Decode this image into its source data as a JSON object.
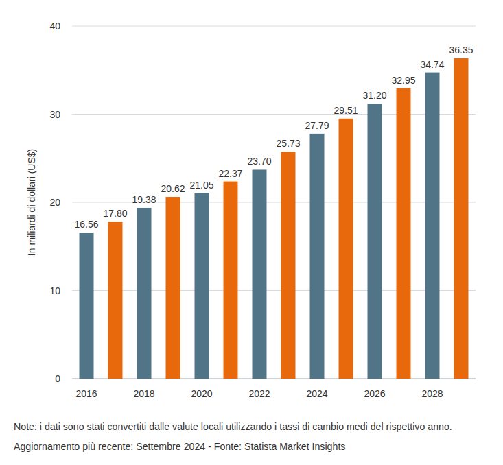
{
  "chart_data": {
    "type": "bar",
    "y_label": "In miliardi di dollari (US$)",
    "categories": [
      "2016",
      null,
      "2018",
      null,
      "2020",
      null,
      "2022",
      null,
      "2024",
      null,
      "2026",
      null,
      "2028",
      null
    ],
    "values": [
      16.56,
      17.8,
      19.38,
      20.62,
      21.05,
      22.37,
      23.7,
      25.73,
      27.79,
      29.51,
      31.2,
      32.95,
      34.74,
      36.35
    ],
    "value_labels": [
      "16.56",
      "17.80",
      "19.38",
      "20.62",
      "21.05",
      "22.37",
      "23.70",
      "25.73",
      "27.79",
      "29.51",
      "31.20",
      "32.95",
      "34.74",
      "36.35"
    ],
    "colors": [
      "#527487",
      "#e8690c",
      "#527487",
      "#e8690c",
      "#527487",
      "#e8690c",
      "#527487",
      "#e8690c",
      "#527487",
      "#e8690c",
      "#527487",
      "#e8690c",
      "#527487",
      "#e8690c"
    ],
    "ylim": [
      0,
      40
    ],
    "yticks": [
      0,
      10,
      20,
      30,
      40
    ],
    "grid": true,
    "data_labels": true,
    "annotations": [
      "Note: i dati sono stati convertiti dalle valute locali utilizzando i tassi di cambio medi del rispettivo anno.",
      "Aggiornamento più recente: Settembre 2024 - Fonte: Statista Market Insights"
    ]
  }
}
